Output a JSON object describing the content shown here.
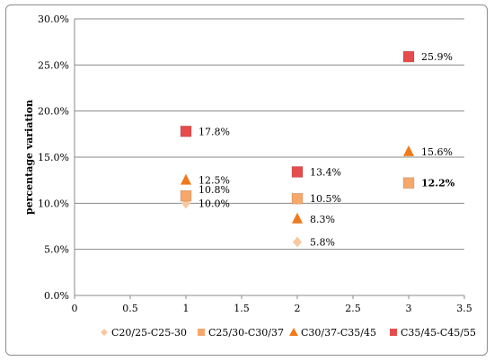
{
  "chart_data": {
    "type": "scatter",
    "title": "",
    "xlabel": "",
    "ylabel": "percentage variation",
    "xlim": [
      0,
      3.5
    ],
    "ylim": [
      0,
      30
    ],
    "x_ticks": [
      "0",
      "0.5",
      "1",
      "1.5",
      "2",
      "2.5",
      "3",
      "3.5"
    ],
    "x_tick_values": [
      0,
      0.5,
      1,
      1.5,
      2,
      2.5,
      3,
      3.5
    ],
    "y_ticks": [
      "0.0%",
      "5.0%",
      "10.0%",
      "15.0%",
      "20.0%",
      "25.0%",
      "30.0%"
    ],
    "y_tick_values": [
      0,
      5,
      10,
      15,
      20,
      25,
      30
    ],
    "grid": "horizontal",
    "legend_position": "bottom",
    "series": [
      {
        "name": "C20/25-C25-30",
        "marker": "diamond",
        "color": "#F9C8A0",
        "points": [
          {
            "x": 1,
            "y": 10.0,
            "label": "10.0%"
          },
          {
            "x": 2,
            "y": 5.8,
            "label": "5.8%"
          }
        ]
      },
      {
        "name": "C25/30-C30/37",
        "marker": "square",
        "color": "#F6A76A",
        "points": [
          {
            "x": 1,
            "y": 10.8,
            "label": "10.8%"
          },
          {
            "x": 2,
            "y": 10.5,
            "label": "10.5%"
          },
          {
            "x": 3,
            "y": 12.2,
            "label": "12.2%"
          }
        ]
      },
      {
        "name": "C30/37-C35/45",
        "marker": "triangle",
        "color": "#F07A1A",
        "points": [
          {
            "x": 1,
            "y": 12.5,
            "label": "12.5%"
          },
          {
            "x": 2,
            "y": 8.3,
            "label": "8.3%"
          },
          {
            "x": 3,
            "y": 15.6,
            "label": "15.6%"
          }
        ]
      },
      {
        "name": "C35/45-C45/55",
        "marker": "square",
        "color": "#E64C4C",
        "points": [
          {
            "x": 1,
            "y": 17.8,
            "label": "17.8%"
          },
          {
            "x": 2,
            "y": 13.4,
            "label": "13.4%"
          },
          {
            "x": 3,
            "y": 25.9,
            "label": "25.9%"
          }
        ]
      }
    ]
  }
}
